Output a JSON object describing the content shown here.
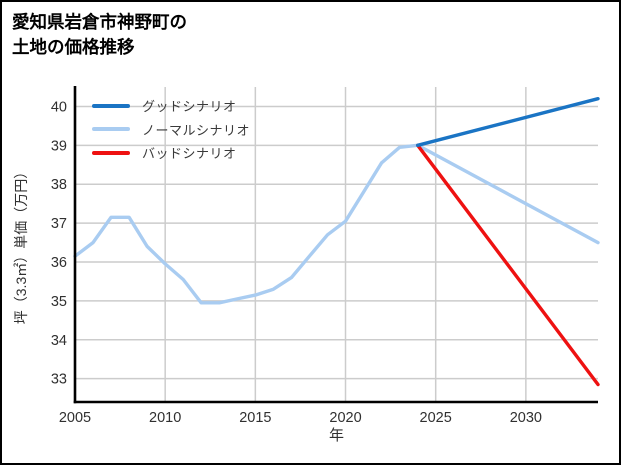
{
  "title": {
    "line1": "愛知県岩倉市神野町の",
    "line2": "土地の価格推移"
  },
  "chart_data": {
    "type": "line",
    "title": "愛知県岩倉市神野町の土地の価格推移",
    "xlabel": "年",
    "ylabel": "坪（3.3㎡）単価（万円）",
    "x_range": [
      2005,
      2034
    ],
    "y_range": [
      32.4,
      40.5
    ],
    "x_ticks": [
      2005,
      2010,
      2015,
      2020,
      2025,
      2030
    ],
    "y_ticks": [
      33,
      34,
      35,
      36,
      37,
      38,
      39,
      40
    ],
    "grid": true,
    "grid_color": "#cccccc",
    "axis_color": "#000000",
    "tick_label_color": "#303030",
    "legend_position": "top-left",
    "draw_order": [
      1,
      2,
      0
    ],
    "series": [
      {
        "name": "グッドシナリオ",
        "color": "#1a74c4",
        "x": [
          2024,
          2034
        ],
        "values": [
          39.0,
          40.2
        ]
      },
      {
        "name": "ノーマルシナリオ",
        "color": "#a9ccf1",
        "x": [
          2005,
          2006,
          2007,
          2008,
          2009,
          2010,
          2011,
          2012,
          2013,
          2014,
          2015,
          2016,
          2017,
          2018,
          2019,
          2020,
          2021,
          2022,
          2023,
          2024,
          2034
        ],
        "values": [
          36.15,
          36.5,
          37.15,
          37.15,
          36.4,
          35.95,
          35.55,
          34.95,
          34.95,
          35.05,
          35.15,
          35.3,
          35.6,
          36.15,
          36.7,
          37.05,
          37.8,
          38.55,
          38.95,
          39.0,
          36.5
        ]
      },
      {
        "name": "バッドシナリオ",
        "color": "#ee1111",
        "x": [
          2024,
          2034
        ],
        "values": [
          39.0,
          32.85
        ]
      }
    ]
  }
}
